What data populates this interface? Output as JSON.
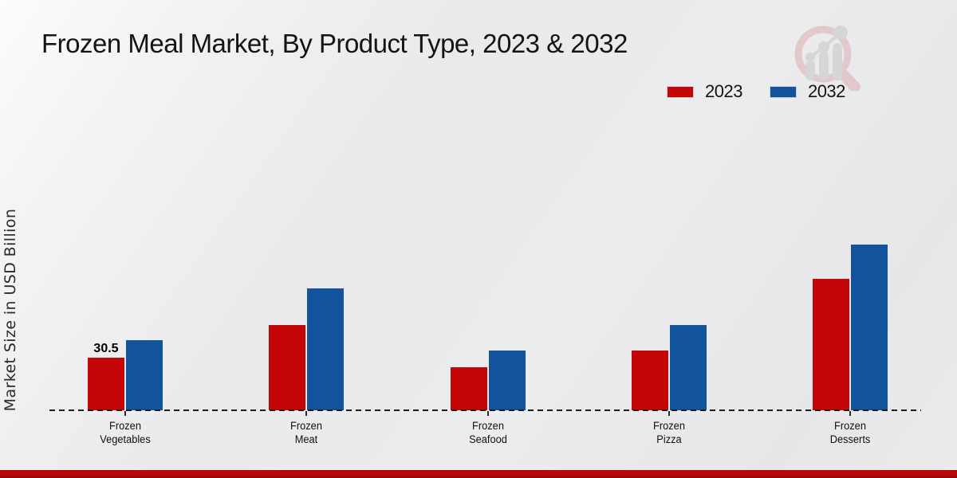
{
  "title": "Frozen Meal Market, By Product Type, 2023 & 2032",
  "y_axis_label": "Market Size in USD Billion",
  "legend": {
    "items": [
      {
        "label": "2023",
        "color": "#c50606"
      },
      {
        "label": "2032",
        "color": "#11549b"
      }
    ]
  },
  "colors": {
    "series_2023": "#c50606",
    "series_2032": "#11549b",
    "footer_bar": "#b70808",
    "footer_bar_edge": "#8f0d0d",
    "baseline": "#1c1c1c",
    "background": "#ebebec",
    "logo_ring": "#ddadb2",
    "logo_gray": "#c5c5c9"
  },
  "icons": {
    "brand_logo": "magnifier-bar-chart-logo"
  },
  "chart_data": {
    "type": "bar",
    "title": "Frozen Meal Market, By Product Type, 2023 & 2032",
    "xlabel": "",
    "ylabel": "Market Size in USD Billion",
    "unit": "USD Billion",
    "grid": false,
    "legend_position": "top-right",
    "baseline_style": "dashed",
    "ylim": [
      0,
      110
    ],
    "categories": [
      "Frozen Vegetables",
      "Frozen Meat",
      "Frozen Seafood",
      "Frozen Pizza",
      "Frozen Desserts"
    ],
    "series": [
      {
        "name": "2023",
        "color": "#c50606",
        "values": [
          30.5,
          50,
          25,
          35,
          77
        ]
      },
      {
        "name": "2032",
        "color": "#11549b",
        "values": [
          41.2,
          71,
          35,
          50,
          97
        ]
      }
    ],
    "annotations": [
      {
        "series_index": 0,
        "category_index": 0,
        "text": "30.5"
      }
    ]
  }
}
